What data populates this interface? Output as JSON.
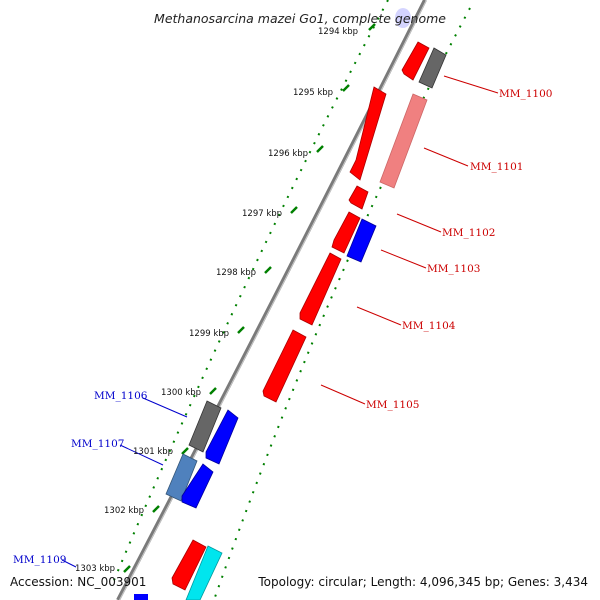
{
  "title": "Methanosarcina mazei Go1, complete genome",
  "footer": {
    "accession": "Accession: NC_003901",
    "summary": "Topology: circular; Length: 4,096,345 bp; Genes: 3,434"
  },
  "kbp_marks": [
    "1294 kbp",
    "1295 kbp",
    "1296 kbp",
    "1297 kbp",
    "1298 kbp",
    "1299 kbp",
    "1300 kbp",
    "1301 kbp",
    "1302 kbp",
    "1303 kbp"
  ],
  "right_labels": [
    "MM_1100",
    "MM_1101",
    "MM_1102",
    "MM_1103",
    "MM_1104",
    "MM_1105"
  ],
  "left_labels": [
    "MM_1106",
    "MM_1107",
    "MM_1109"
  ],
  "colors": {
    "label_red": "#cc0000",
    "label_blue": "#0000cc",
    "tick_green": "#008000"
  }
}
